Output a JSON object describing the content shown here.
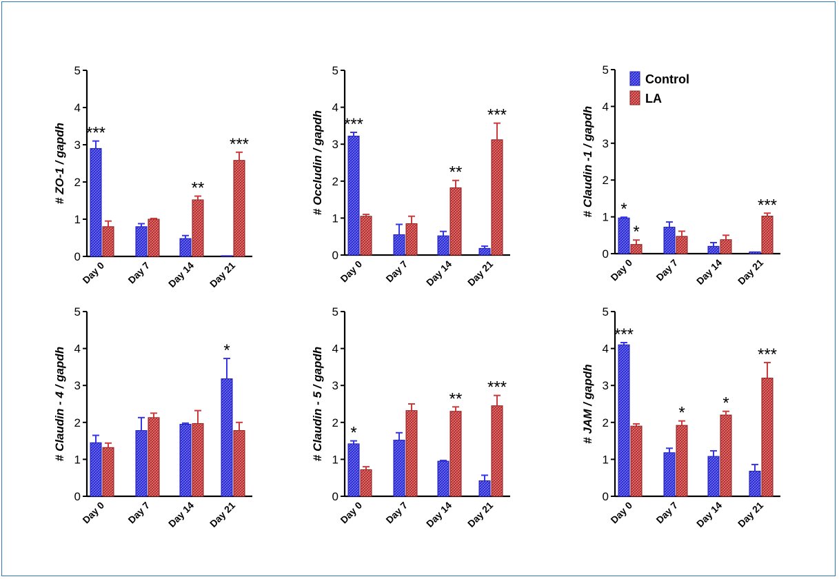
{
  "colors": {
    "control": "#3535e8",
    "control_dark": "#1c1cb0",
    "la": "#cc3b3b",
    "la_dark": "#8c1e1e",
    "axis": "#000000",
    "frame": "#2e75b6"
  },
  "legend": {
    "items": [
      {
        "label": "Control",
        "color_key": "control"
      },
      {
        "label": "LA",
        "color_key": "la"
      }
    ]
  },
  "chart_data": [
    {
      "type": "bar",
      "ylabel_prefix": "# ",
      "ylabel_gene": "ZO-1",
      "ylabel_suffix": " / gapdh",
      "ylim": [
        0,
        5
      ],
      "yticks": [
        "0",
        "1",
        "2",
        "3",
        "4",
        "5"
      ],
      "categories": [
        "Day 0",
        "Day 7",
        "Day 14",
        "Day 21"
      ],
      "series": [
        {
          "name": "Control",
          "values": [
            2.9,
            0.8,
            0.48,
            0.02
          ],
          "errors": [
            0.2,
            0.08,
            0.08,
            0.0
          ]
        },
        {
          "name": "LA",
          "values": [
            0.8,
            1.0,
            1.52,
            2.58
          ],
          "errors": [
            0.15,
            0.02,
            0.1,
            0.22
          ]
        }
      ],
      "annotations": [
        {
          "category": 0,
          "series": 0,
          "text": "***"
        },
        {
          "category": 2,
          "series": 1,
          "text": "**"
        },
        {
          "category": 3,
          "series": 1,
          "text": "***"
        }
      ]
    },
    {
      "type": "bar",
      "ylabel_prefix": "# ",
      "ylabel_gene": "Occludin",
      "ylabel_suffix": " / gapdh",
      "ylim": [
        0,
        5
      ],
      "yticks": [
        "0",
        "1",
        "2",
        "3",
        "4",
        "5"
      ],
      "categories": [
        "Day 0",
        "Day 7",
        "Day 14",
        "Day 21"
      ],
      "series": [
        {
          "name": "Control",
          "values": [
            3.22,
            0.55,
            0.52,
            0.18
          ],
          "errors": [
            0.1,
            0.28,
            0.12,
            0.06
          ]
        },
        {
          "name": "LA",
          "values": [
            1.05,
            0.85,
            1.82,
            3.12
          ],
          "errors": [
            0.05,
            0.2,
            0.2,
            0.45
          ]
        }
      ],
      "annotations": [
        {
          "category": 0,
          "series": 0,
          "text": "***"
        },
        {
          "category": 2,
          "series": 1,
          "text": "**"
        },
        {
          "category": 3,
          "series": 1,
          "text": "***"
        }
      ]
    },
    {
      "type": "bar",
      "ylabel_prefix": "# ",
      "ylabel_gene": "Claudin -1",
      "ylabel_suffix": " / gapdh",
      "ylim": [
        0,
        5
      ],
      "yticks": [
        "0",
        "1",
        "2",
        "3",
        "4",
        "5"
      ],
      "categories": [
        "Day 0",
        "Day 7",
        "Day 14",
        "Day 21"
      ],
      "series": [
        {
          "name": "Control",
          "values": [
            0.97,
            0.72,
            0.2,
            0.05
          ],
          "errors": [
            0.02,
            0.14,
            0.1,
            0.0
          ]
        },
        {
          "name": "LA",
          "values": [
            0.25,
            0.47,
            0.38,
            1.02
          ],
          "errors": [
            0.12,
            0.14,
            0.12,
            0.08
          ]
        }
      ],
      "annotations": [
        {
          "category": 0,
          "series": 0,
          "text": "*"
        },
        {
          "category": 0,
          "series": 1,
          "text": "*"
        },
        {
          "category": 3,
          "series": 1,
          "text": "***"
        }
      ],
      "legend": true
    },
    {
      "type": "bar",
      "ylabel_prefix": "# ",
      "ylabel_gene": "Claudin - 4",
      "ylabel_suffix": " / gapdh",
      "ylim": [
        0,
        5
      ],
      "yticks": [
        "0",
        "1",
        "2",
        "3",
        "4",
        "5"
      ],
      "categories": [
        "Day 0",
        "Day 7",
        "Day 14",
        "Day 21"
      ],
      "series": [
        {
          "name": "Control",
          "values": [
            1.45,
            1.78,
            1.95,
            3.18
          ],
          "errors": [
            0.2,
            0.35,
            0.03,
            0.55
          ]
        },
        {
          "name": "LA",
          "values": [
            1.32,
            2.13,
            1.97,
            1.78
          ],
          "errors": [
            0.12,
            0.12,
            0.35,
            0.22
          ]
        }
      ],
      "annotations": [
        {
          "category": 3,
          "series": 0,
          "text": "*"
        }
      ]
    },
    {
      "type": "bar",
      "ylabel_prefix": "# ",
      "ylabel_gene": "Claudin - 5",
      "ylabel_suffix": " / gapdh",
      "ylim": [
        0,
        5
      ],
      "yticks": [
        "0",
        "1",
        "2",
        "3",
        "4",
        "5"
      ],
      "categories": [
        "Day 0",
        "Day 7",
        "Day 14",
        "Day 21"
      ],
      "series": [
        {
          "name": "Control",
          "values": [
            1.42,
            1.52,
            0.95,
            0.42
          ],
          "errors": [
            0.08,
            0.2,
            0.02,
            0.15
          ]
        },
        {
          "name": "LA",
          "values": [
            0.72,
            2.32,
            2.3,
            2.45
          ],
          "errors": [
            0.08,
            0.18,
            0.12,
            0.28
          ]
        }
      ],
      "annotations": [
        {
          "category": 0,
          "series": 0,
          "text": "*"
        },
        {
          "category": 2,
          "series": 1,
          "text": "**"
        },
        {
          "category": 3,
          "series": 1,
          "text": "***"
        }
      ]
    },
    {
      "type": "bar",
      "ylabel_prefix": "# ",
      "ylabel_gene": "JAM",
      "ylabel_suffix": " / gapdh",
      "ylim": [
        0,
        5
      ],
      "yticks": [
        "0",
        "1",
        "2",
        "3",
        "4",
        "5"
      ],
      "categories": [
        "Day 0",
        "Day 7",
        "Day 14",
        "Day 21"
      ],
      "series": [
        {
          "name": "Control",
          "values": [
            4.1,
            1.18,
            1.08,
            0.68
          ],
          "errors": [
            0.06,
            0.12,
            0.15,
            0.18
          ]
        },
        {
          "name": "LA",
          "values": [
            1.9,
            1.92,
            2.2,
            3.2
          ],
          "errors": [
            0.06,
            0.12,
            0.1,
            0.42
          ]
        }
      ],
      "annotations": [
        {
          "category": 0,
          "series": 0,
          "text": "***"
        },
        {
          "category": 1,
          "series": 1,
          "text": "*"
        },
        {
          "category": 2,
          "series": 1,
          "text": "*"
        },
        {
          "category": 3,
          "series": 1,
          "text": "***"
        }
      ]
    }
  ]
}
